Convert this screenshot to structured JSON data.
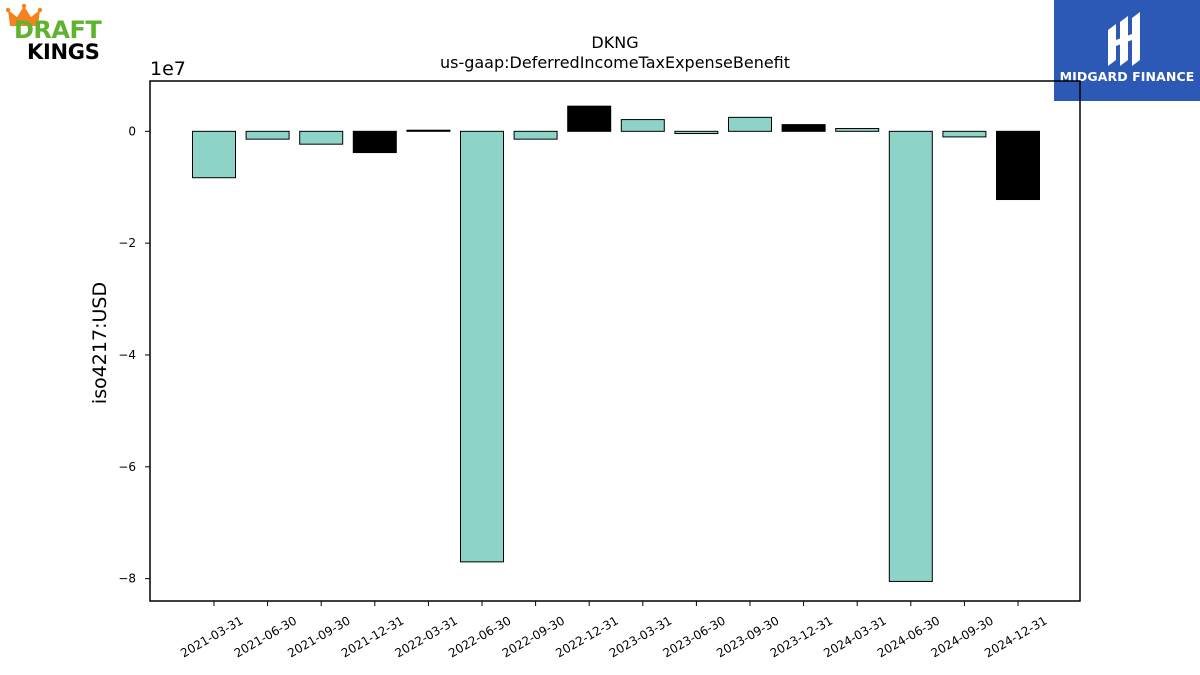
{
  "logos": {
    "left": {
      "line1": "DRAFT",
      "line2": "KINGS",
      "icon": "crown-icon",
      "colors": {
        "green": "#5fb32f",
        "orange": "#f5821f",
        "black": "#000000"
      }
    },
    "right": {
      "text": "MIDGARD FINANCE",
      "icon": "midgard-mark-icon",
      "colors": {
        "background": "#2c58b6",
        "foreground": "#ffffff"
      }
    }
  },
  "chart_data": {
    "type": "bar",
    "title": "DKNG",
    "subtitle": "us-gaap:DeferredIncomeTaxExpenseBenefit",
    "xlabel": "",
    "ylabel": "iso4217:USD",
    "offset_text": "1e7",
    "ylim": [
      -84000000,
      9000000
    ],
    "yticks": [
      {
        "value": 0,
        "label": "0"
      },
      {
        "value": -20000000,
        "label": "−2"
      },
      {
        "value": -40000000,
        "label": "−4"
      },
      {
        "value": -60000000,
        "label": "−6"
      },
      {
        "value": -80000000,
        "label": "−8"
      }
    ],
    "grid": false,
    "legend": "none",
    "categories": [
      "2021-03-31",
      "2021-06-30",
      "2021-09-30",
      "2021-12-31",
      "2022-03-31",
      "2022-06-30",
      "2022-09-30",
      "2022-12-31",
      "2023-03-31",
      "2023-06-30",
      "2023-09-30",
      "2023-12-31",
      "2024-03-31",
      "2024-06-30",
      "2024-09-30",
      "2024-12-31"
    ],
    "values": [
      -8300000,
      -1400000,
      -2300000,
      -3800000,
      200000,
      -77000000,
      -1400000,
      4500000,
      2100000,
      -400000,
      2500000,
      1200000,
      500000,
      -80500000,
      -1000000,
      -12200000
    ],
    "bar_colors": [
      "#8dd3c7",
      "#8dd3c7",
      "#8dd3c7",
      "#000000",
      "#000000",
      "#8dd3c7",
      "#8dd3c7",
      "#000000",
      "#8dd3c7",
      "#8dd3c7",
      "#8dd3c7",
      "#000000",
      "#8dd3c7",
      "#8dd3c7",
      "#8dd3c7",
      "#000000"
    ]
  }
}
